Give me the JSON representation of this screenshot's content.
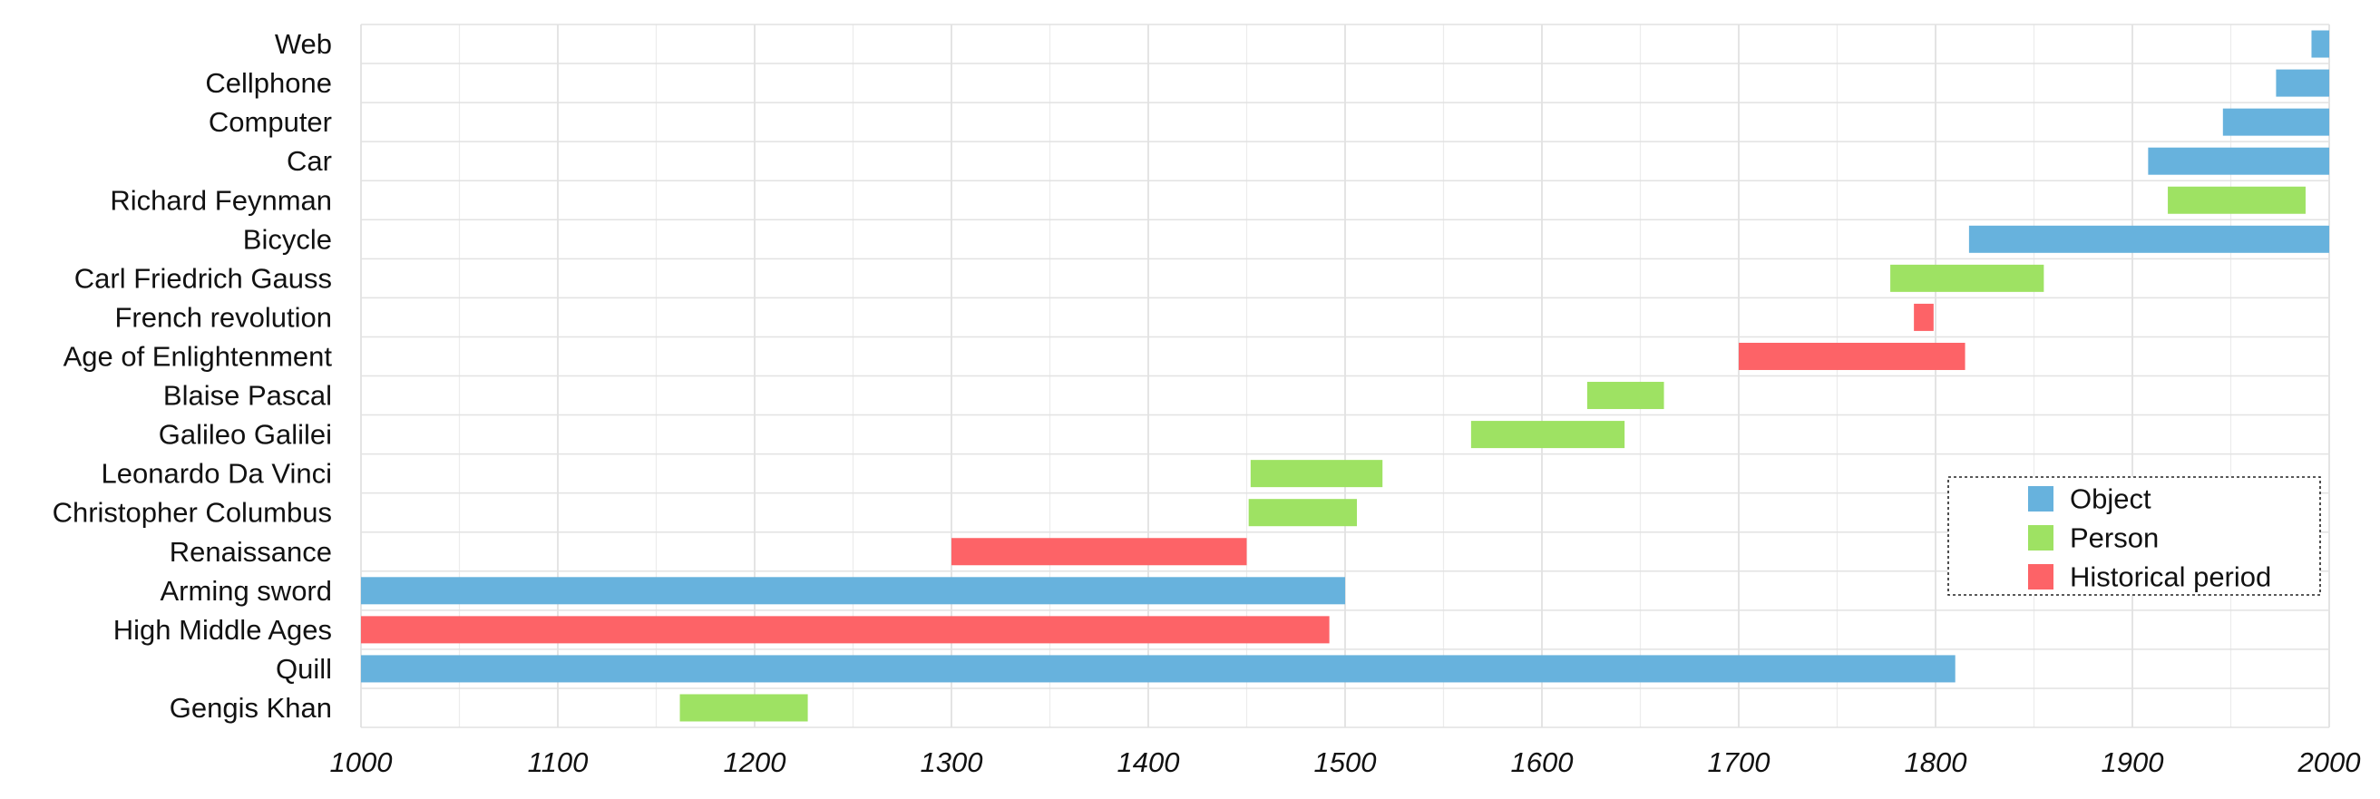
{
  "chart_data": {
    "type": "bar",
    "orientation": "horizontal",
    "subtype": "timeline",
    "title": "",
    "xlabel": "",
    "ylabel": "",
    "xlim": [
      1000,
      2000
    ],
    "x_ticks": [
      1000,
      1100,
      1200,
      1300,
      1400,
      1500,
      1600,
      1700,
      1800,
      1900,
      2000
    ],
    "x_minor_step": 50,
    "grid": true,
    "legend": {
      "placement": "bottom-right",
      "entries": [
        {
          "name": "Object",
          "color": "#67b2dd"
        },
        {
          "name": "Person",
          "color": "#9ee263"
        },
        {
          "name": "Historical period",
          "color": "#fd6367"
        }
      ]
    },
    "categories": [
      "Web",
      "Cellphone",
      "Computer",
      "Car",
      "Richard Feynman",
      "Bicycle",
      "Carl Friedrich Gauss",
      "French revolution",
      "Age of Enlightenment",
      "Blaise Pascal",
      "Galileo Galilei",
      "Leonardo Da Vinci",
      "Christopher Columbus",
      "Renaissance",
      "Arming sword",
      "High Middle Ages",
      "Quill",
      "Gengis Khan"
    ],
    "bars": [
      {
        "label": "Web",
        "start": 1991,
        "end": 2000,
        "kind": "Object"
      },
      {
        "label": "Cellphone",
        "start": 1973,
        "end": 2000,
        "kind": "Object"
      },
      {
        "label": "Computer",
        "start": 1946,
        "end": 2000,
        "kind": "Object"
      },
      {
        "label": "Car",
        "start": 1908,
        "end": 2000,
        "kind": "Object"
      },
      {
        "label": "Richard Feynman",
        "start": 1918,
        "end": 1988,
        "kind": "Person"
      },
      {
        "label": "Bicycle",
        "start": 1817,
        "end": 2000,
        "kind": "Object"
      },
      {
        "label": "Carl Friedrich Gauss",
        "start": 1777,
        "end": 1855,
        "kind": "Person"
      },
      {
        "label": "French revolution",
        "start": 1789,
        "end": 1799,
        "kind": "Historical period"
      },
      {
        "label": "Age of Enlightenment",
        "start": 1700,
        "end": 1815,
        "kind": "Historical period"
      },
      {
        "label": "Blaise Pascal",
        "start": 1623,
        "end": 1662,
        "kind": "Person"
      },
      {
        "label": "Galileo Galilei",
        "start": 1564,
        "end": 1642,
        "kind": "Person"
      },
      {
        "label": "Leonardo Da Vinci",
        "start": 1452,
        "end": 1519,
        "kind": "Person"
      },
      {
        "label": "Christopher Columbus",
        "start": 1451,
        "end": 1506,
        "kind": "Person"
      },
      {
        "label": "Renaissance",
        "start": 1300,
        "end": 1450,
        "kind": "Historical period"
      },
      {
        "label": "Arming sword",
        "start": 1000,
        "end": 1500,
        "kind": "Object"
      },
      {
        "label": "High Middle Ages",
        "start": 1000,
        "end": 1492,
        "kind": "Historical period"
      },
      {
        "label": "Quill",
        "start": 1000,
        "end": 1810,
        "kind": "Object"
      },
      {
        "label": "Gengis Khan",
        "start": 1162,
        "end": 1227,
        "kind": "Person"
      }
    ]
  }
}
